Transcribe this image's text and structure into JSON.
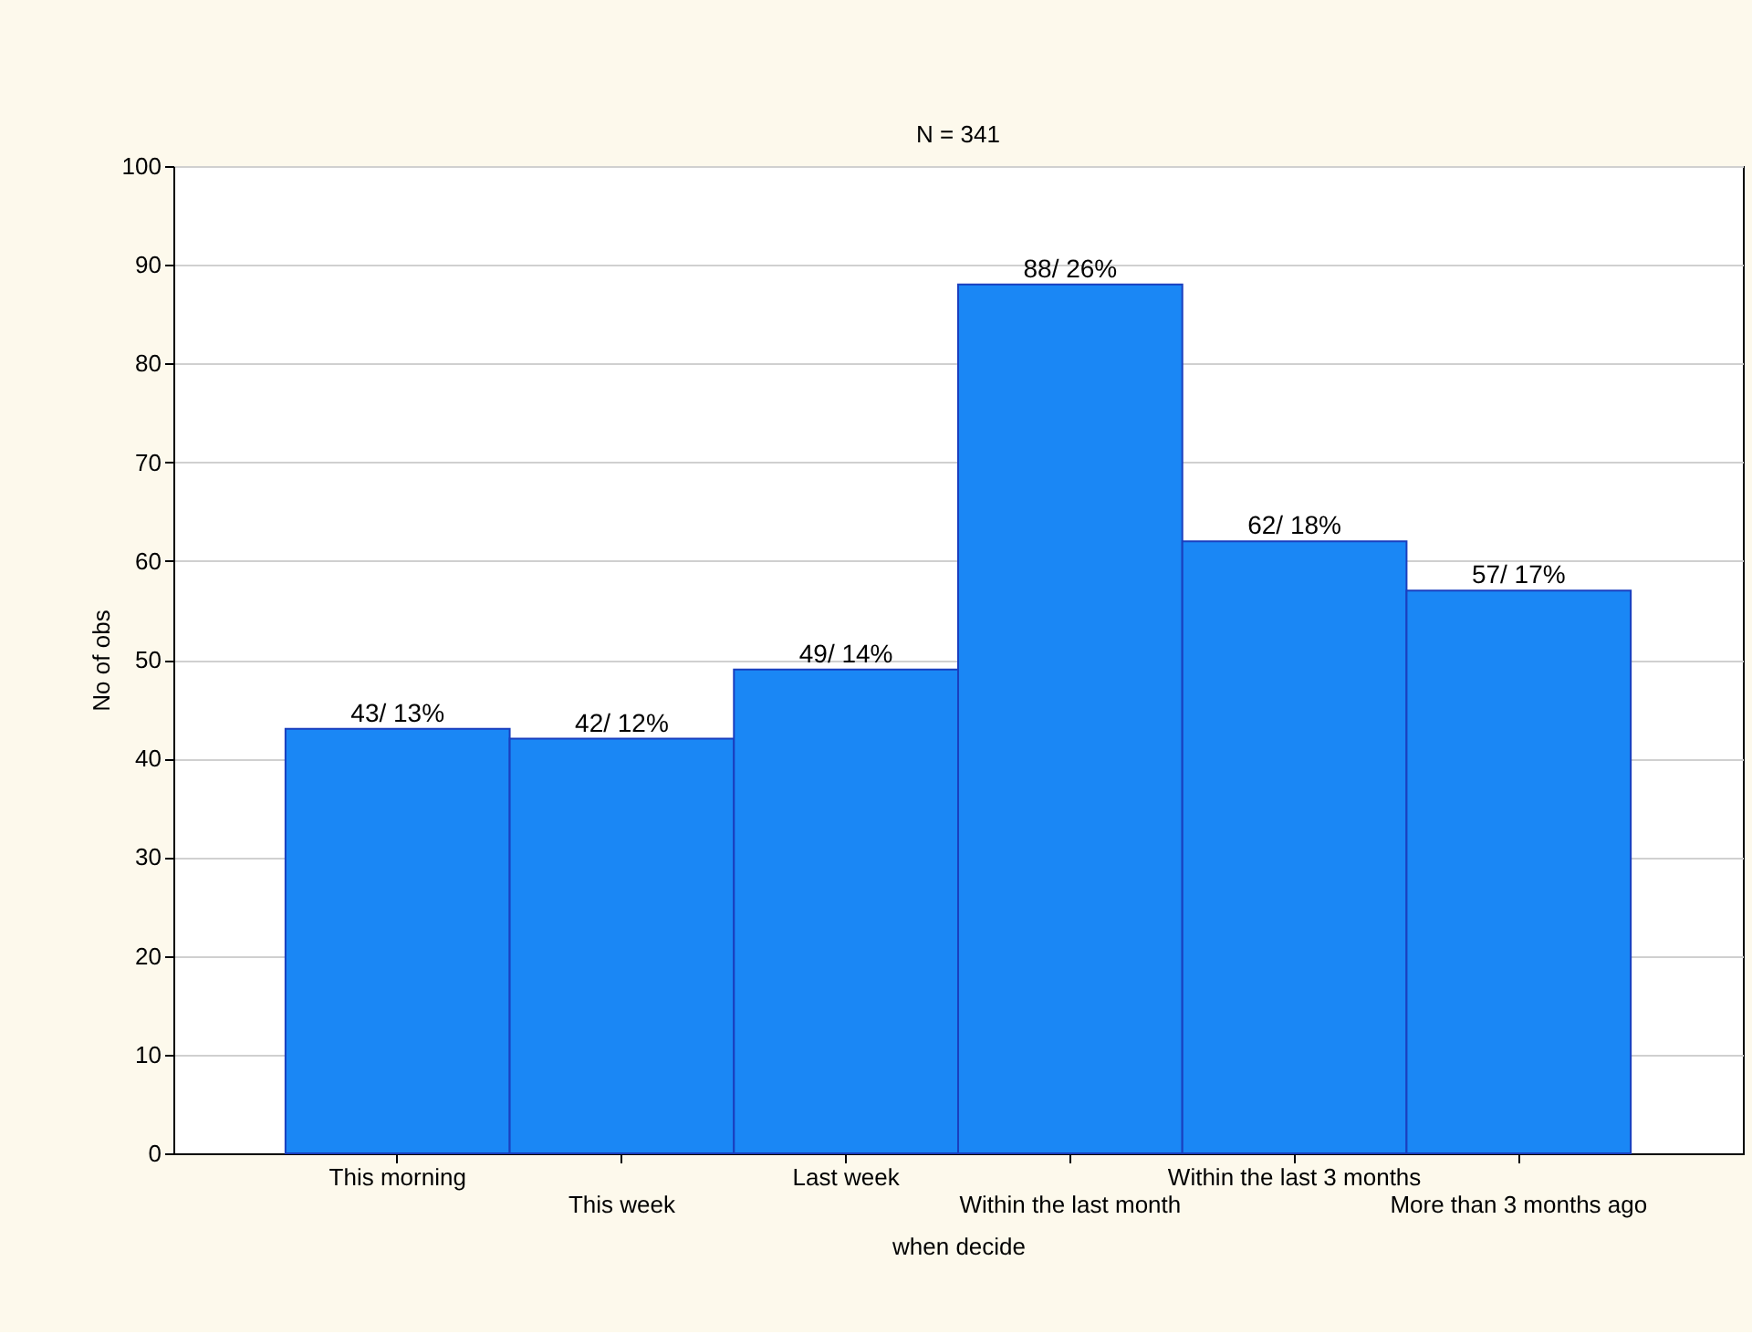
{
  "chart_data": {
    "type": "bar",
    "title": "N = 341",
    "xlabel": "when decide",
    "ylabel": "No of obs",
    "categories": [
      "This morning",
      "This week",
      "Last week",
      "Within the last month",
      "Within the last 3 months",
      "More than 3 months ago"
    ],
    "values": [
      43,
      42,
      49,
      88,
      62,
      57
    ],
    "value_labels": [
      "43/ 13%",
      "42/ 12%",
      "49/ 14%",
      "88/ 26%",
      "62/ 18%",
      "57/ 17%"
    ],
    "color": "#1a87f5",
    "ylim": [
      0,
      100
    ],
    "yticks": [
      0,
      10,
      20,
      30,
      40,
      50,
      60,
      70,
      80,
      90,
      100
    ],
    "grid": "y"
  }
}
